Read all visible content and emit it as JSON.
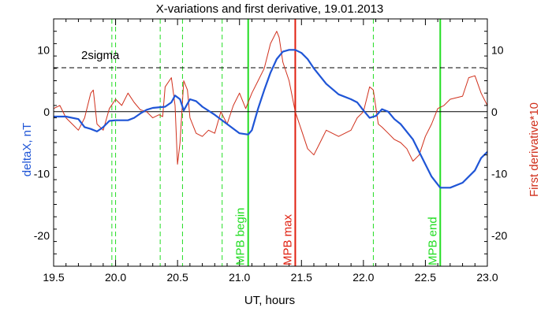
{
  "chart_data": {
    "type": "line",
    "title": "X-variations and first derivative, 19.01.2013",
    "xlabel": "UT, hours",
    "ylabel_left": "deltaX, nT",
    "ylabel_right": "First derivative*10",
    "xlim": [
      19.5,
      23.0
    ],
    "ylim": [
      -25,
      15
    ],
    "x_ticks": [
      "19.5",
      "20.0",
      "20.5",
      "21.0",
      "21.5",
      "22.0",
      "22.5",
      "23.0"
    ],
    "y_ticks": [
      "-20",
      "-10",
      "0",
      "10"
    ],
    "colors": {
      "deltaX": "#1f55d6",
      "derivative": "#d0301c",
      "green": "#22dd22",
      "red_marker": "#e02010",
      "axes": "#000000"
    },
    "threshold": {
      "value": 7.1,
      "label": "2sigma"
    },
    "zero_line": 0,
    "dashed_markers_x": [
      19.97,
      20.0,
      20.36,
      20.54,
      20.86,
      22.08
    ],
    "markers": [
      {
        "x": 21.07,
        "label": "MPB begin",
        "color": "#22dd22"
      },
      {
        "x": 21.45,
        "label": "MPB max",
        "color": "#e02010"
      },
      {
        "x": 22.62,
        "label": "MPB end",
        "color": "#22dd22"
      }
    ],
    "series": [
      {
        "name": "deltaX, nT",
        "x": [
          19.5,
          19.6,
          19.7,
          19.75,
          19.8,
          19.85,
          19.9,
          19.95,
          20.0,
          20.1,
          20.15,
          20.2,
          20.25,
          20.3,
          20.4,
          20.45,
          20.48,
          20.52,
          20.55,
          20.6,
          20.65,
          20.7,
          20.8,
          20.9,
          21.0,
          21.07,
          21.1,
          21.15,
          21.2,
          21.25,
          21.3,
          21.35,
          21.4,
          21.45,
          21.5,
          21.55,
          21.6,
          21.7,
          21.8,
          21.9,
          21.95,
          22.0,
          22.05,
          22.1,
          22.15,
          22.2,
          22.25,
          22.3,
          22.4,
          22.5,
          22.55,
          22.62,
          22.7,
          22.8,
          22.9,
          22.95,
          23.0
        ],
        "values": [
          -0.8,
          -0.8,
          -1.2,
          -2.5,
          -2.8,
          -3.2,
          -2.5,
          -1.5,
          -1.4,
          -1.4,
          -1.0,
          -0.3,
          0.3,
          0.6,
          0.8,
          1.5,
          2.6,
          2.0,
          0.2,
          2.0,
          1.7,
          0.8,
          -0.5,
          -2.0,
          -3.5,
          -3.7,
          -3.0,
          0.5,
          3.5,
          6.3,
          8.5,
          9.7,
          10.0,
          10.0,
          9.5,
          8.5,
          7.0,
          4.5,
          2.8,
          2.0,
          1.5,
          0.2,
          -1.0,
          -0.7,
          0.4,
          0.0,
          -1.2,
          -2.0,
          -4.5,
          -8.5,
          -10.5,
          -12.3,
          -12.3,
          -11.5,
          -9.5,
          -7.5,
          -6.5
        ]
      },
      {
        "name": "First derivative*10",
        "x": [
          19.5,
          19.55,
          19.6,
          19.65,
          19.7,
          19.75,
          19.8,
          19.82,
          19.85,
          19.9,
          19.95,
          20.0,
          20.05,
          20.1,
          20.15,
          20.2,
          20.25,
          20.3,
          20.35,
          20.38,
          20.4,
          20.45,
          20.48,
          20.5,
          20.52,
          20.55,
          20.58,
          20.6,
          20.65,
          20.7,
          20.75,
          20.8,
          20.85,
          20.9,
          20.95,
          21.0,
          21.05,
          21.1,
          21.15,
          21.2,
          21.25,
          21.3,
          21.32,
          21.35,
          21.4,
          21.45,
          21.5,
          21.55,
          21.6,
          21.65,
          21.7,
          21.8,
          21.9,
          21.95,
          22.0,
          22.05,
          22.08,
          22.12,
          22.15,
          22.2,
          22.25,
          22.3,
          22.35,
          22.4,
          22.45,
          22.5,
          22.55,
          22.6,
          22.65,
          22.7,
          22.8,
          22.85,
          22.9,
          22.95,
          23.0
        ],
        "values": [
          0.5,
          1.0,
          -1.0,
          -2.0,
          -3.0,
          -1.0,
          3.0,
          3.5,
          -2.0,
          -3.0,
          0.5,
          2.0,
          1.0,
          3.0,
          1.5,
          0.3,
          0.0,
          -1.0,
          -0.5,
          -0.8,
          4.0,
          5.5,
          1.0,
          -8.5,
          -5.0,
          5.0,
          3.5,
          -1.0,
          -3.5,
          -4.0,
          -3.0,
          -3.5,
          0.0,
          -2.0,
          1.0,
          3.0,
          0.5,
          3.0,
          5.0,
          7.0,
          11.0,
          13.0,
          12.0,
          8.0,
          5.0,
          0.0,
          -3.0,
          -6.0,
          -7.0,
          -5.0,
          -3.0,
          -4.0,
          -3.0,
          -1.0,
          0.0,
          4.0,
          3.5,
          -2.0,
          -2.5,
          -3.5,
          -4.5,
          -5.0,
          -6.0,
          -8.0,
          -7.0,
          -4.0,
          -2.0,
          0.5,
          1.0,
          2.0,
          2.5,
          5.5,
          5.8,
          3.0,
          1.0
        ]
      }
    ]
  }
}
